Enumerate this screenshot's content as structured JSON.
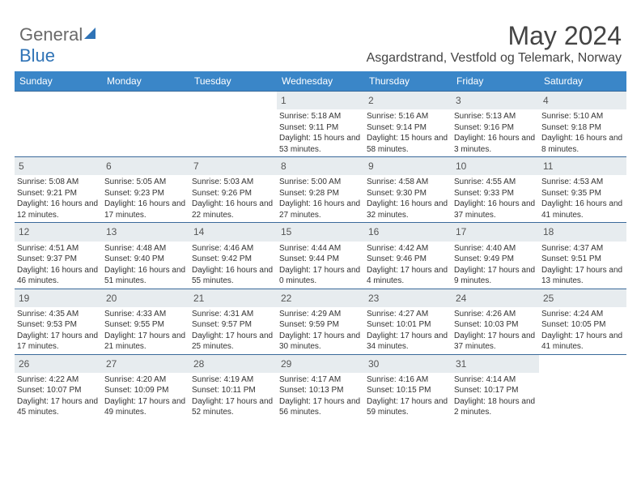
{
  "logo": {
    "part1": "General",
    "part2": "Blue"
  },
  "title": "May 2024",
  "subtitle": "Asgardstrand, Vestfold og Telemark, Norway",
  "colors": {
    "header_bg": "#3a86c8",
    "header_text": "#ffffff",
    "daynum_bg": "#e7ecef",
    "row_border": "#3a6a9a",
    "text": "#333333"
  },
  "day_headers": [
    "Sunday",
    "Monday",
    "Tuesday",
    "Wednesday",
    "Thursday",
    "Friday",
    "Saturday"
  ],
  "weeks": [
    [
      null,
      null,
      null,
      {
        "n": "1",
        "sr": "5:18 AM",
        "ss": "9:11 PM",
        "dl": "15 hours and 53 minutes."
      },
      {
        "n": "2",
        "sr": "5:16 AM",
        "ss": "9:14 PM",
        "dl": "15 hours and 58 minutes."
      },
      {
        "n": "3",
        "sr": "5:13 AM",
        "ss": "9:16 PM",
        "dl": "16 hours and 3 minutes."
      },
      {
        "n": "4",
        "sr": "5:10 AM",
        "ss": "9:18 PM",
        "dl": "16 hours and 8 minutes."
      }
    ],
    [
      {
        "n": "5",
        "sr": "5:08 AM",
        "ss": "9:21 PM",
        "dl": "16 hours and 12 minutes."
      },
      {
        "n": "6",
        "sr": "5:05 AM",
        "ss": "9:23 PM",
        "dl": "16 hours and 17 minutes."
      },
      {
        "n": "7",
        "sr": "5:03 AM",
        "ss": "9:26 PM",
        "dl": "16 hours and 22 minutes."
      },
      {
        "n": "8",
        "sr": "5:00 AM",
        "ss": "9:28 PM",
        "dl": "16 hours and 27 minutes."
      },
      {
        "n": "9",
        "sr": "4:58 AM",
        "ss": "9:30 PM",
        "dl": "16 hours and 32 minutes."
      },
      {
        "n": "10",
        "sr": "4:55 AM",
        "ss": "9:33 PM",
        "dl": "16 hours and 37 minutes."
      },
      {
        "n": "11",
        "sr": "4:53 AM",
        "ss": "9:35 PM",
        "dl": "16 hours and 41 minutes."
      }
    ],
    [
      {
        "n": "12",
        "sr": "4:51 AM",
        "ss": "9:37 PM",
        "dl": "16 hours and 46 minutes."
      },
      {
        "n": "13",
        "sr": "4:48 AM",
        "ss": "9:40 PM",
        "dl": "16 hours and 51 minutes."
      },
      {
        "n": "14",
        "sr": "4:46 AM",
        "ss": "9:42 PM",
        "dl": "16 hours and 55 minutes."
      },
      {
        "n": "15",
        "sr": "4:44 AM",
        "ss": "9:44 PM",
        "dl": "17 hours and 0 minutes."
      },
      {
        "n": "16",
        "sr": "4:42 AM",
        "ss": "9:46 PM",
        "dl": "17 hours and 4 minutes."
      },
      {
        "n": "17",
        "sr": "4:40 AM",
        "ss": "9:49 PM",
        "dl": "17 hours and 9 minutes."
      },
      {
        "n": "18",
        "sr": "4:37 AM",
        "ss": "9:51 PM",
        "dl": "17 hours and 13 minutes."
      }
    ],
    [
      {
        "n": "19",
        "sr": "4:35 AM",
        "ss": "9:53 PM",
        "dl": "17 hours and 17 minutes."
      },
      {
        "n": "20",
        "sr": "4:33 AM",
        "ss": "9:55 PM",
        "dl": "17 hours and 21 minutes."
      },
      {
        "n": "21",
        "sr": "4:31 AM",
        "ss": "9:57 PM",
        "dl": "17 hours and 25 minutes."
      },
      {
        "n": "22",
        "sr": "4:29 AM",
        "ss": "9:59 PM",
        "dl": "17 hours and 30 minutes."
      },
      {
        "n": "23",
        "sr": "4:27 AM",
        "ss": "10:01 PM",
        "dl": "17 hours and 34 minutes."
      },
      {
        "n": "24",
        "sr": "4:26 AM",
        "ss": "10:03 PM",
        "dl": "17 hours and 37 minutes."
      },
      {
        "n": "25",
        "sr": "4:24 AM",
        "ss": "10:05 PM",
        "dl": "17 hours and 41 minutes."
      }
    ],
    [
      {
        "n": "26",
        "sr": "4:22 AM",
        "ss": "10:07 PM",
        "dl": "17 hours and 45 minutes."
      },
      {
        "n": "27",
        "sr": "4:20 AM",
        "ss": "10:09 PM",
        "dl": "17 hours and 49 minutes."
      },
      {
        "n": "28",
        "sr": "4:19 AM",
        "ss": "10:11 PM",
        "dl": "17 hours and 52 minutes."
      },
      {
        "n": "29",
        "sr": "4:17 AM",
        "ss": "10:13 PM",
        "dl": "17 hours and 56 minutes."
      },
      {
        "n": "30",
        "sr": "4:16 AM",
        "ss": "10:15 PM",
        "dl": "17 hours and 59 minutes."
      },
      {
        "n": "31",
        "sr": "4:14 AM",
        "ss": "10:17 PM",
        "dl": "18 hours and 2 minutes."
      },
      null
    ]
  ],
  "labels": {
    "sunrise": "Sunrise: ",
    "sunset": "Sunset: ",
    "daylight": "Daylight: "
  }
}
